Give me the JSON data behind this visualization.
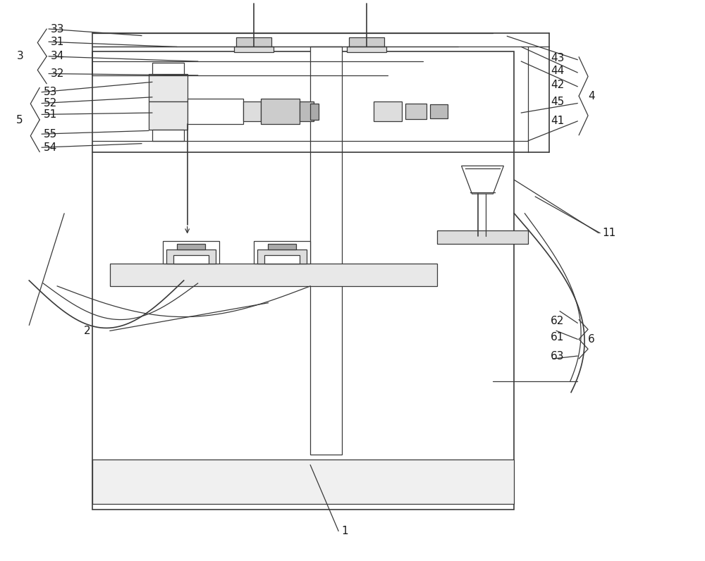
{
  "bg_color": "#ffffff",
  "line_color": "#3a3a3a",
  "label_color": "#1a1a1a",
  "fig_width": 10.0,
  "fig_height": 7.96
}
